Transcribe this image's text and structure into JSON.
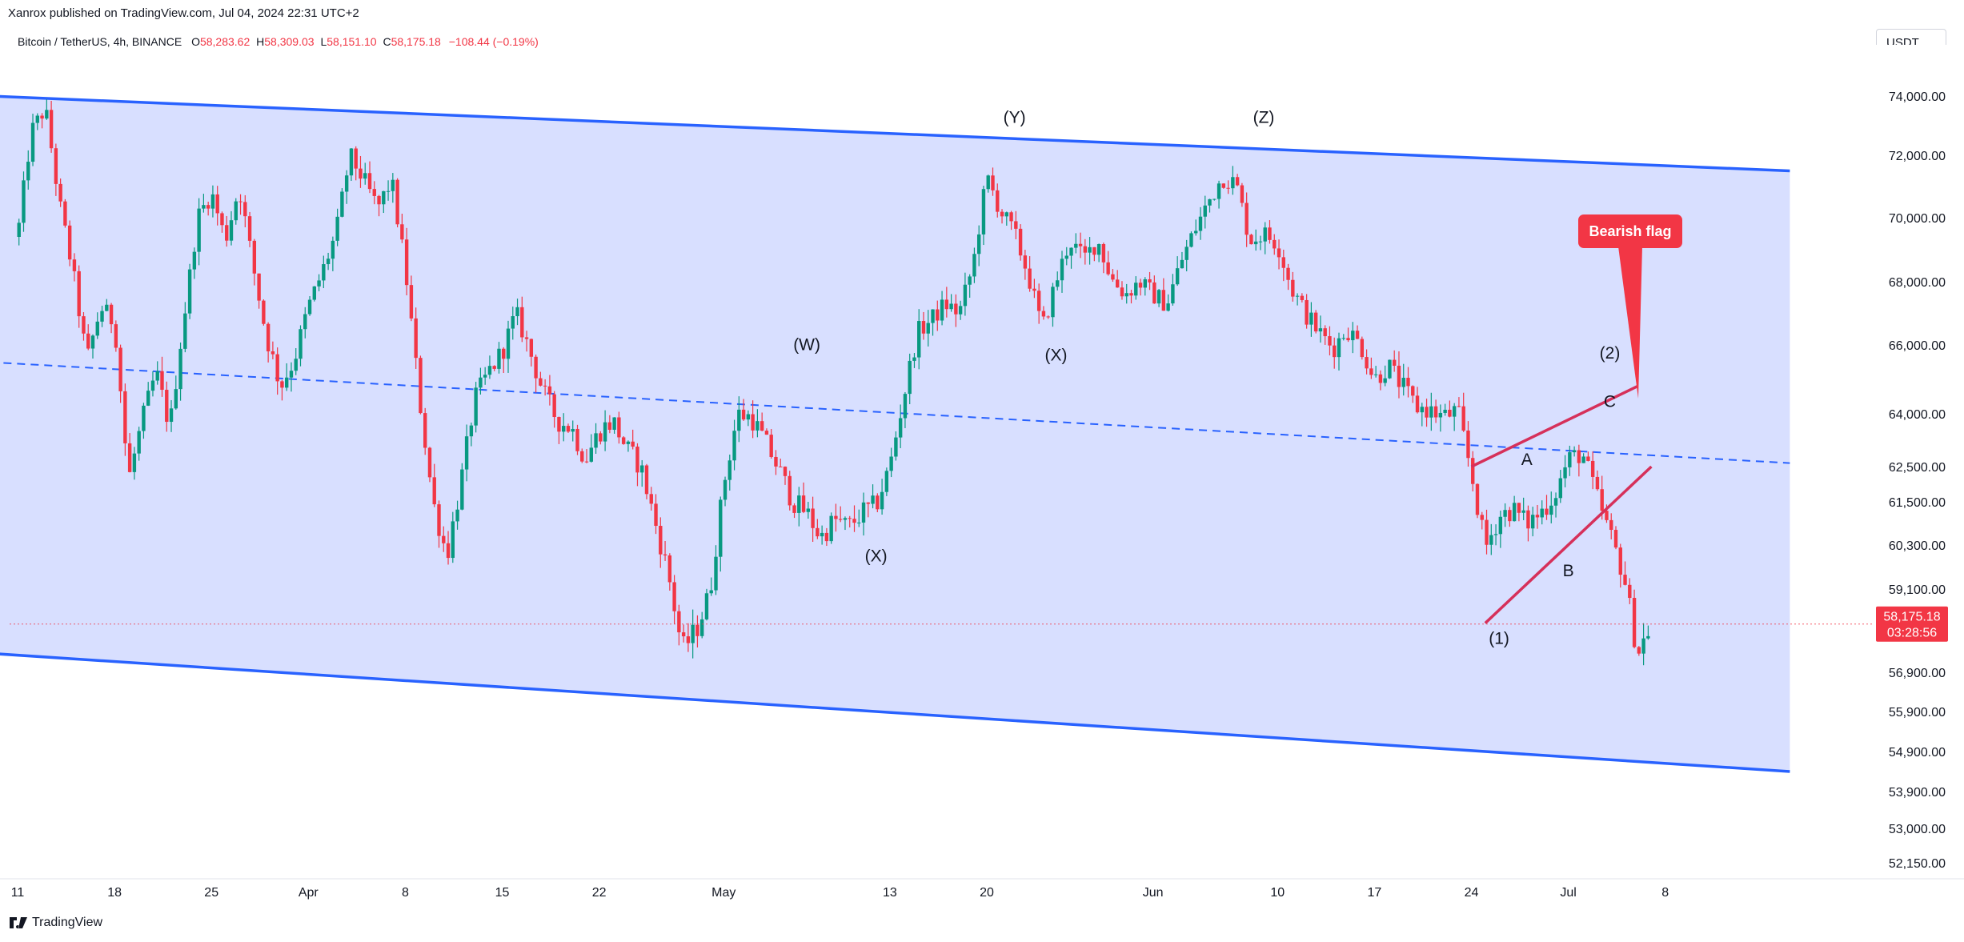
{
  "header": {
    "publisher": "Xanrox published on TradingView.com, Jul 04, 2024 22:31 UTC+2",
    "symbol": "Bitcoin / TetherUS, 4h, BINANCE",
    "ohlc": {
      "o_label": "O",
      "o": "58,283.62",
      "h_label": "H",
      "h": "58,309.03",
      "l_label": "L",
      "l": "58,151.10",
      "c_label": "C",
      "c": "58,175.18",
      "change": "−108.44 (−0.19%)"
    },
    "currency": "USDT"
  },
  "footer": {
    "brand": "TradingView"
  },
  "colors": {
    "up": "#089981",
    "down": "#f23645",
    "channel_fill": "#d6ddff",
    "channel_line": "#2962ff",
    "flag_line": "#d6305a",
    "callout": "#f23645",
    "price_tag": "#f23645"
  },
  "chart_data": {
    "type": "candlestick",
    "symbol": "Bitcoin / TetherUS",
    "interval": "4h",
    "price_axis_labels": [
      74000,
      72000,
      70000,
      68000,
      66000,
      64000,
      62500,
      61500,
      60300,
      59100,
      56900,
      55900,
      54900,
      53900,
      53000,
      52150
    ],
    "price_axis_text": [
      "74,000.00",
      "72,000.00",
      "70,000.00",
      "68,000.00",
      "66,000.00",
      "64,000.00",
      "62,500.00",
      "61,500.00",
      "60,300.00",
      "59,100.00",
      "56,900.00",
      "55,900.00",
      "54,900.00",
      "53,900.00",
      "53,000.00",
      "52,150.00"
    ],
    "time_axis_labels": [
      "11",
      "18",
      "25",
      "Apr",
      "8",
      "15",
      "22",
      "May",
      "13",
      "20",
      "Jun",
      "10",
      "17",
      "24",
      "Jul",
      "8"
    ],
    "time_axis_days": [
      0,
      7,
      14,
      21,
      28,
      35,
      42,
      51,
      63,
      70,
      82,
      91,
      98,
      105,
      112,
      119
    ],
    "last_price": "58,175.18",
    "countdown": "03:28:56",
    "price_path": [
      [
        0,
        69400
      ],
      [
        1,
        72800
      ],
      [
        2,
        73600
      ],
      [
        3,
        70500
      ],
      [
        4,
        68300
      ],
      [
        5,
        65500
      ],
      [
        6,
        67200
      ],
      [
        7,
        66700
      ],
      [
        8,
        62100
      ],
      [
        9,
        63800
      ],
      [
        10,
        65200
      ],
      [
        11,
        63600
      ],
      [
        12,
        66800
      ],
      [
        13,
        70000
      ],
      [
        14,
        70800
      ],
      [
        15,
        69300
      ],
      [
        16,
        71000
      ],
      [
        17,
        68500
      ],
      [
        18,
        66200
      ],
      [
        19,
        64800
      ],
      [
        20,
        65600
      ],
      [
        21,
        67200
      ],
      [
        22,
        68300
      ],
      [
        23,
        69500
      ],
      [
        24,
        72000
      ],
      [
        25,
        71200
      ],
      [
        26,
        70300
      ],
      [
        27,
        71200
      ],
      [
        28,
        68400
      ],
      [
        29,
        64500
      ],
      [
        30,
        61500
      ],
      [
        31,
        60000
      ],
      [
        32,
        62000
      ],
      [
        33,
        64400
      ],
      [
        34,
        65200
      ],
      [
        35,
        65800
      ],
      [
        36,
        67000
      ],
      [
        37,
        65800
      ],
      [
        38,
        64600
      ],
      [
        39,
        63800
      ],
      [
        40,
        63600
      ],
      [
        41,
        62700
      ],
      [
        42,
        63500
      ],
      [
        43,
        63800
      ],
      [
        44,
        63000
      ],
      [
        45,
        62500
      ],
      [
        46,
        61000
      ],
      [
        47,
        59500
      ],
      [
        48,
        57500
      ],
      [
        49,
        58000
      ],
      [
        50,
        59000
      ],
      [
        51,
        62000
      ],
      [
        52,
        64000
      ],
      [
        53,
        63900
      ],
      [
        54,
        63200
      ],
      [
        55,
        62400
      ],
      [
        56,
        61500
      ],
      [
        57,
        61200
      ],
      [
        58,
        60500
      ],
      [
        59,
        61000
      ],
      [
        60,
        60800
      ],
      [
        61,
        61200
      ],
      [
        62,
        61400
      ],
      [
        63,
        62500
      ],
      [
        64,
        64500
      ],
      [
        65,
        66400
      ],
      [
        66,
        66800
      ],
      [
        67,
        67300
      ],
      [
        68,
        67000
      ],
      [
        69,
        68500
      ],
      [
        70,
        71300
      ],
      [
        71,
        70200
      ],
      [
        72,
        69500
      ],
      [
        73,
        68200
      ],
      [
        74,
        66500
      ],
      [
        75,
        68000
      ],
      [
        76,
        69300
      ],
      [
        77,
        68700
      ],
      [
        78,
        69300
      ],
      [
        79,
        68100
      ],
      [
        80,
        67600
      ],
      [
        81,
        68000
      ],
      [
        82,
        67600
      ],
      [
        83,
        67300
      ],
      [
        84,
        68600
      ],
      [
        85,
        69600
      ],
      [
        86,
        70500
      ],
      [
        87,
        71300
      ],
      [
        88,
        71100
      ],
      [
        89,
        69300
      ],
      [
        90,
        69500
      ],
      [
        91,
        69200
      ],
      [
        92,
        67800
      ],
      [
        93,
        67000
      ],
      [
        94,
        66400
      ],
      [
        95,
        65900
      ],
      [
        96,
        66500
      ],
      [
        97,
        66000
      ],
      [
        98,
        65000
      ],
      [
        99,
        65400
      ],
      [
        100,
        64800
      ],
      [
        101,
        64200
      ],
      [
        102,
        64100
      ],
      [
        103,
        63900
      ],
      [
        104,
        64100
      ],
      [
        105,
        62300
      ],
      [
        106,
        60200
      ],
      [
        107,
        61100
      ],
      [
        108,
        61300
      ],
      [
        109,
        60900
      ],
      [
        110,
        61200
      ],
      [
        111,
        61700
      ],
      [
        112,
        62700
      ],
      [
        113,
        62900
      ],
      [
        114,
        61700
      ],
      [
        115,
        60600
      ],
      [
        116,
        59500
      ],
      [
        117,
        57400
      ],
      [
        118,
        58175
      ]
    ],
    "channel_upper": [
      [
        -2,
        74000
      ],
      [
        128,
        71500
      ]
    ],
    "channel_lower": [
      [
        -2,
        57400
      ],
      [
        128,
        54400
      ]
    ],
    "channel_mid": [
      [
        -2,
        65500
      ],
      [
        128,
        62600
      ]
    ],
    "flag_upper": [
      [
        105,
        62500
      ],
      [
        117,
        64800
      ]
    ],
    "flag_lower": [
      [
        106,
        58200
      ],
      [
        118,
        62500
      ]
    ],
    "callout_text": "Bearish flag",
    "wave_labels": [
      {
        "text": "(W)",
        "day": 57,
        "price": 65850
      },
      {
        "text": "(X)",
        "day": 62,
        "price": 59850
      },
      {
        "text": "(Y)",
        "day": 72,
        "price": 73100
      },
      {
        "text": "(X)",
        "day": 75,
        "price": 65550
      },
      {
        "text": "(Z)",
        "day": 90,
        "price": 73100
      },
      {
        "text": "(2)",
        "day": 115,
        "price": 65600
      },
      {
        "text": "C",
        "day": 115,
        "price": 64200
      },
      {
        "text": "A",
        "day": 109,
        "price": 62550
      },
      {
        "text": "B",
        "day": 112,
        "price": 59450
      },
      {
        "text": "(1)",
        "day": 107,
        "price": 57650
      }
    ]
  }
}
